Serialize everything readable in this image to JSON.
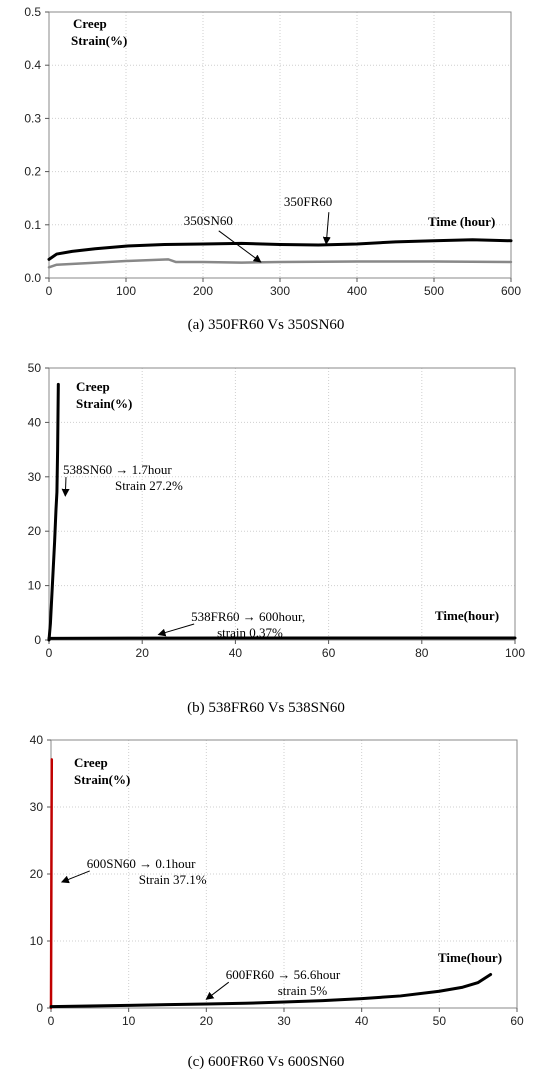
{
  "chart_data": [
    {
      "type": "line",
      "caption": "(a) 350FR60 Vs 350SN60",
      "ylabel_line1": "Creep",
      "ylabel_line2": "Strain(%)",
      "xlabel": "Time (hour)",
      "xlim": [
        0,
        600
      ],
      "ylim": [
        0,
        0.5
      ],
      "xticks": [
        0,
        100,
        200,
        300,
        400,
        500,
        600
      ],
      "yticks": [
        0.0,
        0.1,
        0.2,
        0.3,
        0.4,
        0.5
      ],
      "ytick_labels": [
        "0.0",
        "0.1",
        "0.2",
        "0.3",
        "0.4",
        "0.5"
      ],
      "grid": true,
      "series": [
        {
          "name": "350FR60",
          "color": "#000000",
          "x": [
            0,
            10,
            30,
            60,
            100,
            150,
            200,
            250,
            300,
            350,
            400,
            450,
            500,
            550,
            600
          ],
          "y": [
            0.035,
            0.045,
            0.05,
            0.055,
            0.06,
            0.063,
            0.064,
            0.065,
            0.063,
            0.062,
            0.064,
            0.068,
            0.07,
            0.072,
            0.07
          ]
        },
        {
          "name": "350SN60",
          "color": "#888888",
          "x": [
            0,
            10,
            50,
            100,
            155,
            165,
            200,
            250,
            300,
            400,
            500,
            600
          ],
          "y": [
            0.02,
            0.025,
            0.028,
            0.032,
            0.035,
            0.03,
            0.03,
            0.029,
            0.03,
            0.031,
            0.031,
            0.03
          ]
        }
      ],
      "annotations": [
        {
          "text": "350FR60",
          "tx": 305,
          "ty": 0.135,
          "ax": 360,
          "ay": 0.064
        },
        {
          "text": "350SN60",
          "tx": 175,
          "ty": 0.1,
          "ax": 275,
          "ay": 0.03
        }
      ]
    },
    {
      "type": "line",
      "caption": "(b) 538FR60 Vs 538SN60",
      "ylabel_line1": "Creep",
      "ylabel_line2": "Strain(%)",
      "xlabel": "Time(hour)",
      "xlim": [
        0,
        100
      ],
      "ylim": [
        0,
        50
      ],
      "xticks": [
        0,
        20,
        40,
        60,
        80,
        100
      ],
      "yticks": [
        0,
        10,
        20,
        30,
        40,
        50
      ],
      "ytick_labels": [
        "0",
        "10",
        "20",
        "30",
        "40",
        "50"
      ],
      "grid": true,
      "series": [
        {
          "name": "538SN60",
          "color": "#000000",
          "x": [
            0,
            0.3,
            0.6,
            0.9,
            1.2,
            1.5,
            1.7,
            1.85,
            2.0
          ],
          "y": [
            0,
            3,
            8,
            13,
            18,
            24,
            27.2,
            35,
            47
          ]
        },
        {
          "name": "538FR60",
          "color": "#000000",
          "x": [
            0,
            20,
            40,
            60,
            80,
            100
          ],
          "y": [
            0.3,
            0.35,
            0.36,
            0.37,
            0.37,
            0.37
          ]
        }
      ],
      "annotations": [
        {
          "lines": [
            "538SN60 → 1.7hour",
            "Strain  27.2%"
          ],
          "tx": 3,
          "ty": 30.5,
          "ax": 3.5,
          "ay": 26.5
        },
        {
          "lines": [
            "538FR60 → 600hour,",
            "strain  0.37%"
          ],
          "tx": 30.5,
          "ty": 3.5,
          "ax": 23.5,
          "ay": 1
        }
      ]
    },
    {
      "type": "line",
      "caption": "(c) 600FR60 Vs 600SN60",
      "ylabel_line1": "Creep",
      "ylabel_line2": "Strain(%)",
      "xlabel": "Time(hour)",
      "xlim": [
        0,
        60
      ],
      "ylim": [
        0,
        40
      ],
      "xticks": [
        0,
        10,
        20,
        30,
        40,
        50,
        60
      ],
      "yticks": [
        0,
        10,
        20,
        30,
        40
      ],
      "ytick_labels": [
        "0",
        "10",
        "20",
        "30",
        "40"
      ],
      "grid": true,
      "series": [
        {
          "name": "600SN60",
          "color": "#c00000",
          "x": [
            0,
            0.05,
            0.1
          ],
          "y": [
            0,
            20,
            37.1
          ]
        },
        {
          "name": "600FR60",
          "color": "#000000",
          "x": [
            0,
            5,
            10,
            15,
            20,
            25,
            30,
            35,
            40,
            45,
            50,
            53,
            55,
            56.6
          ],
          "y": [
            0.2,
            0.3,
            0.4,
            0.5,
            0.6,
            0.7,
            0.9,
            1.1,
            1.4,
            1.8,
            2.5,
            3.1,
            3.8,
            5.0
          ]
        }
      ],
      "annotations": [
        {
          "lines": [
            "600SN60 → 0.1hour",
            "Strain  37.1%"
          ],
          "tx": 4.6,
          "ty": 20.9,
          "ax": 1.4,
          "ay": 18.8
        },
        {
          "lines": [
            "600FR60 → 56.6hour",
            "strain  5%"
          ],
          "tx": 22.5,
          "ty": 4.3,
          "ax": 20,
          "ay": 1.3
        }
      ]
    }
  ]
}
